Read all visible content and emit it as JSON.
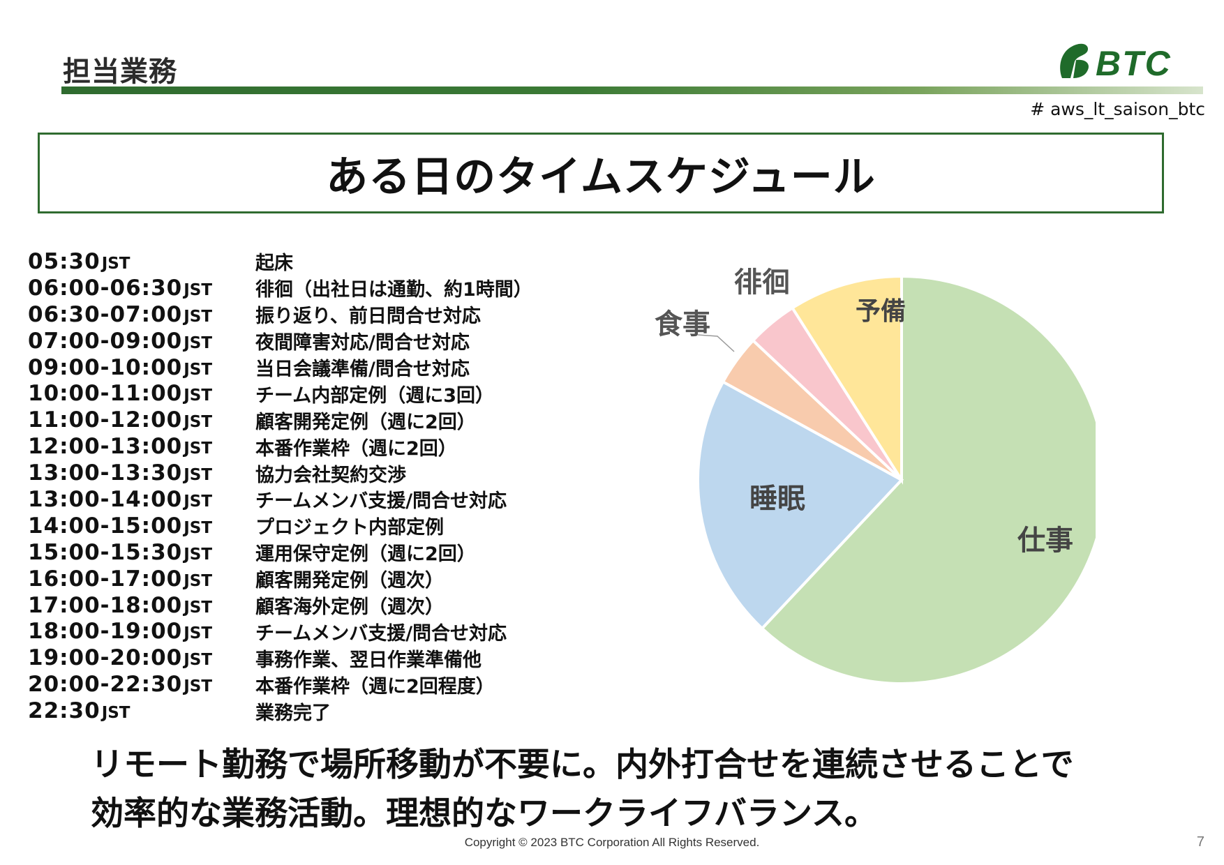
{
  "header": {
    "title": "担当業務",
    "logo_text": "BTC",
    "hashtag": "# aws_lt_saison_btc"
  },
  "headline": "ある日のタイムスケジュール",
  "schedule": [
    {
      "time": "05:30",
      "suffix": "JST",
      "task": "起床"
    },
    {
      "time": "06:00-06:30",
      "suffix": "JST",
      "task": "徘徊（出社日は通勤、約1時間）"
    },
    {
      "time": "06:30-07:00",
      "suffix": "JST",
      "task": "振り返り、前日問合せ対応"
    },
    {
      "time": "07:00-09:00",
      "suffix": "JST",
      "task": "夜間障害対応/問合せ対応"
    },
    {
      "time": "09:00-10:00",
      "suffix": "JST",
      "task": "当日会議準備/問合せ対応"
    },
    {
      "time": "10:00-11:00",
      "suffix": "JST",
      "task": "チーム内部定例（週に3回）"
    },
    {
      "time": "11:00-12:00",
      "suffix": "JST",
      "task": "顧客開発定例（週に2回）"
    },
    {
      "time": "12:00-13:00",
      "suffix": "JST",
      "task": "本番作業枠（週に2回）"
    },
    {
      "time": "13:00-13:30",
      "suffix": "JST",
      "task": "協力会社契約交渉"
    },
    {
      "time": "13:00-14:00",
      "suffix": "JST",
      "task": "チームメンバ支援/問合せ対応"
    },
    {
      "time": "14:00-15:00",
      "suffix": "JST",
      "task": "プロジェクト内部定例"
    },
    {
      "time": "15:00-15:30",
      "suffix": "JST",
      "task": "運用保守定例（週に2回）"
    },
    {
      "time": "16:00-17:00",
      "suffix": "JST",
      "task": "顧客開発定例（週次）"
    },
    {
      "time": "17:00-18:00",
      "suffix": "JST",
      "task": "顧客海外定例（週次）"
    },
    {
      "time": "18:00-19:00",
      "suffix": "JST",
      "task": "チームメンバ支援/問合せ対応"
    },
    {
      "time": "19:00-20:00",
      "suffix": "JST",
      "task": "事務作業、翌日作業準備他"
    },
    {
      "time": "20:00-22:30",
      "suffix": "JST",
      "task": "本番作業枠（週に2回程度）"
    },
    {
      "time": "22:30",
      "suffix": "JST",
      "task": "業務完了"
    }
  ],
  "chart_data": {
    "type": "pie",
    "slices": [
      {
        "label": "仕事",
        "value": 62,
        "color": "#c5e0b4"
      },
      {
        "label": "睡眠",
        "value": 21,
        "color": "#bdd7ee"
      },
      {
        "label": "食事",
        "value": 4,
        "color": "#f8cbad"
      },
      {
        "label": "徘徊",
        "value": 4,
        "color": "#f9c6cc"
      },
      {
        "label": "予備",
        "value": 9,
        "color": "#ffe699"
      }
    ]
  },
  "message": [
    "リモート勤務で場所移動が不要に。内外打合せを連続させることで",
    "効率的な業務活動。理想的なワークライフバランス。"
  ],
  "footer": {
    "copyright": "Copyright © 2023 BTC Corporation All Rights Reserved.",
    "page_number": "7"
  },
  "colors": {
    "accent_green": "#2f6b2f",
    "label_gray": "#444444"
  }
}
